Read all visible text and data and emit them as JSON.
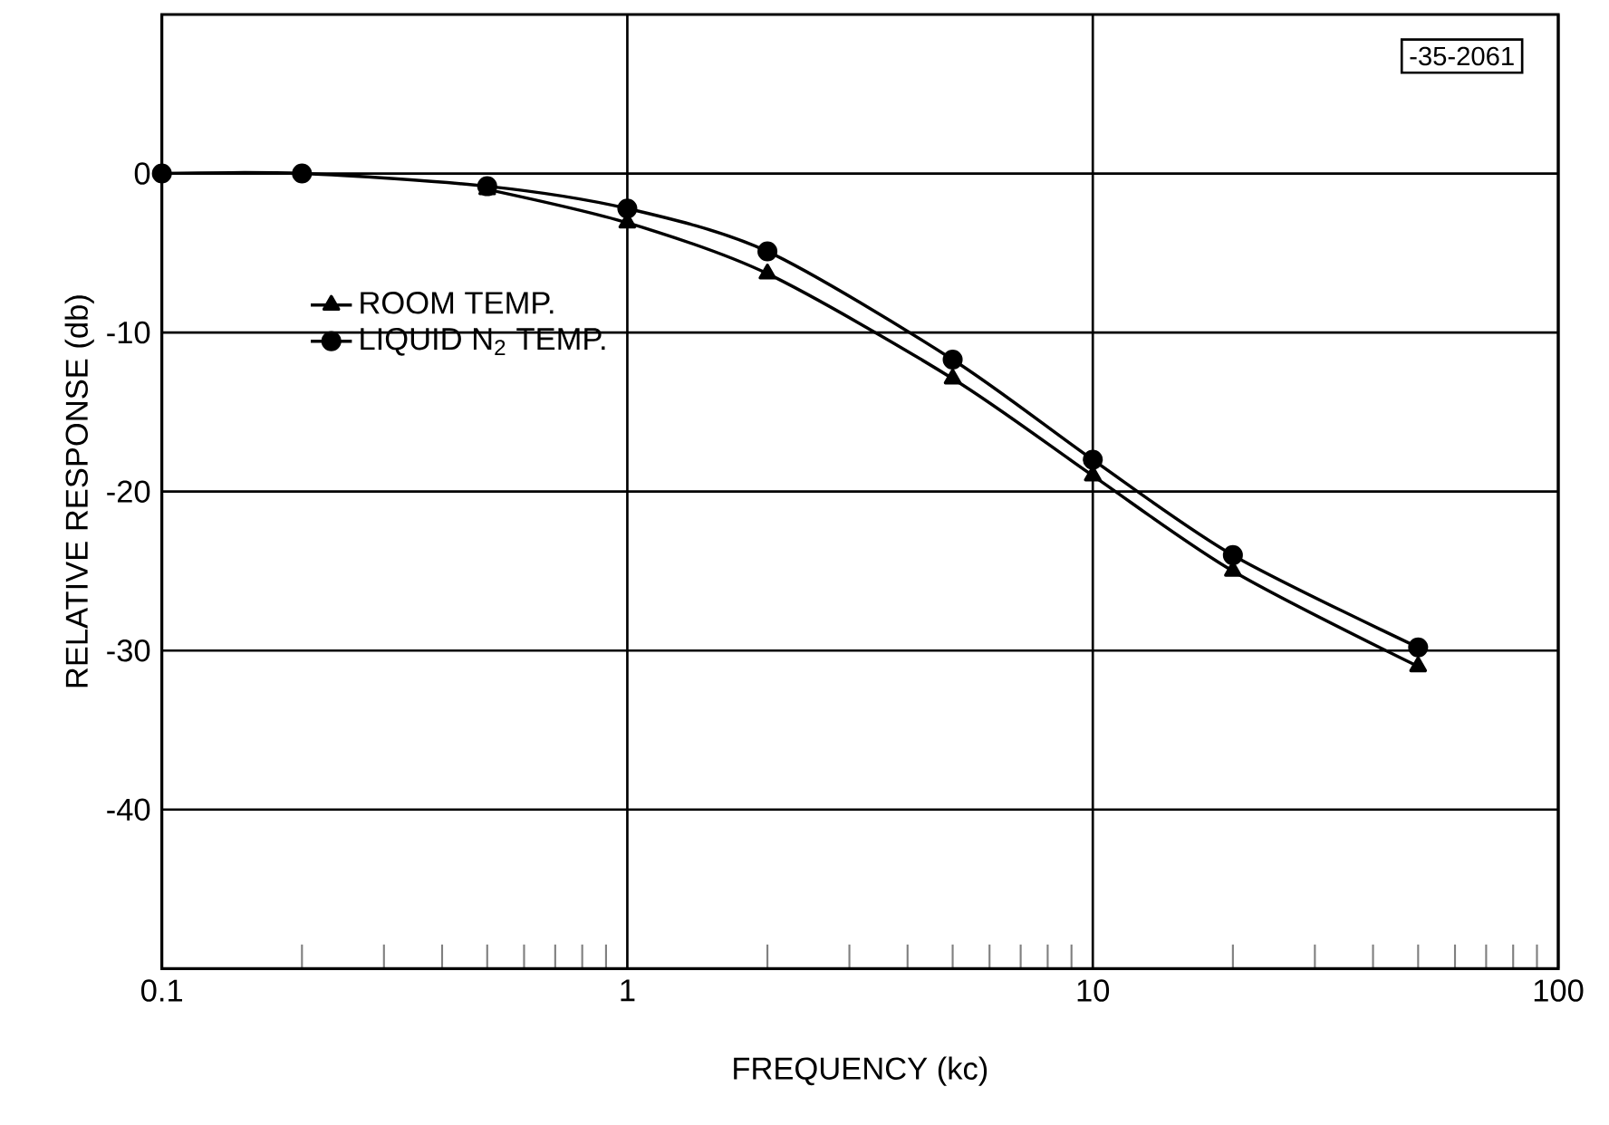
{
  "chart_data": {
    "type": "line",
    "xlabel": "FREQUENCY (kc)",
    "ylabel": "RELATIVE RESPONSE (db)",
    "log": "x",
    "xlim": [
      0.1,
      100
    ],
    "xticks": [
      0.1,
      1,
      10,
      100
    ],
    "ylim": [
      -50,
      10
    ],
    "yticks": [
      0,
      -10,
      -20,
      -30,
      -40
    ],
    "grid": true,
    "legend": "left",
    "line_style": "solid",
    "annotations": [
      "-35-2061"
    ],
    "series": [
      {
        "name": "ROOM TEMP.",
        "color": "#000000",
        "marker": "triangle",
        "x": [
          0.5,
          1,
          2,
          5,
          10,
          20,
          50
        ],
        "values": [
          -1.0,
          -3.1,
          -6.3,
          -12.9,
          -19.0,
          -25.0,
          -31.0
        ]
      },
      {
        "name": "LIQUID N$_{2}$ TEMP.",
        "color": "#000000",
        "marker": "circle",
        "x": [
          0.1,
          0.2,
          0.5,
          1,
          2,
          5,
          10,
          20,
          50
        ],
        "values": [
          0,
          0,
          -0.8,
          -2.2,
          -4.9,
          -11.7,
          -18.0,
          -24.0,
          -29.8
        ]
      }
    ]
  }
}
